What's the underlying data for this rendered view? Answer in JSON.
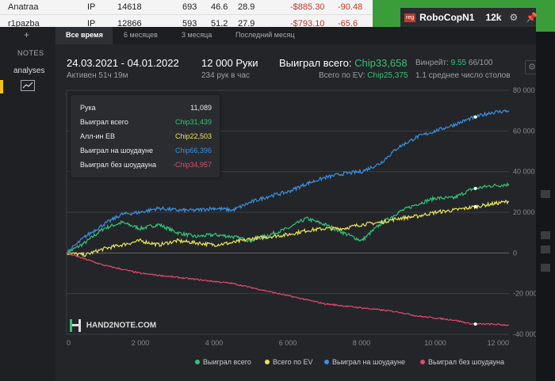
{
  "background_table": {
    "rows": [
      {
        "player": "Anatraa",
        "pos": "IP",
        "hands": "14618",
        "a": "693",
        "b": "46.6",
        "c": "28.9",
        "money": "-$885.30",
        "d": "-90.48"
      },
      {
        "player": "r1pazba",
        "pos": "IP",
        "hands": "12866",
        "a": "593",
        "b": "51.2",
        "c": "27.9",
        "money": "-$793.10",
        "d": "-65.6"
      }
    ]
  },
  "hud": {
    "badge": "reg",
    "name": "RoboCopN1",
    "hands": "12k"
  },
  "sidebar": {
    "plus": "+",
    "notes": "NOTES",
    "analyses": "analyses"
  },
  "tabs": [
    "Все время",
    "6 месяцев",
    "3 месяца",
    "Последний месяц"
  ],
  "summary": {
    "date_range": "24.03.2021 - 04.01.2022",
    "active": "Активен 51ч 19м",
    "hands": "12 000 Руки",
    "hands_per_hour": "234 рук в час",
    "won_total_label": "Выиграл всего:",
    "won_total_value": "Chip33,658",
    "ev_total_label": "Всего по EV:",
    "ev_total_value": "Chip25,375",
    "winrate_label": "Винрейт:",
    "winrate_value": "9.55",
    "winrate_suffix": "66/100",
    "avg_tables": "1.1 среднее число столов"
  },
  "tooltip": [
    {
      "label": "Рука",
      "value": "11,089",
      "color": "#e8e8e8"
    },
    {
      "label": "Выиграл всего",
      "value": "Chip31,439",
      "color": "#33c27a"
    },
    {
      "label": "Алл-ин EB",
      "value": "Chip22,503",
      "color": "#e9e35a"
    },
    {
      "label": "Выиграл на шоудауне",
      "value": "Chip66,396",
      "color": "#3b8fe0"
    },
    {
      "label": "Выиграл без шоудауна",
      "value": "-Chip34,957",
      "color": "#e04a6e"
    }
  ],
  "logo_text": "HAND2NOTE.COM",
  "chart_data": {
    "type": "line",
    "xlim": [
      0,
      12000
    ],
    "ylim": [
      -40000,
      80000
    ],
    "x_ticks": [
      0,
      2000,
      4000,
      6000,
      8000,
      10000,
      12000
    ],
    "x_tick_labels": [
      "0",
      "2 000",
      "4 000",
      "6 000",
      "8 000",
      "10 000",
      "12 000"
    ],
    "y_ticks": [
      -40000,
      -20000,
      0,
      20000,
      40000,
      60000,
      80000
    ],
    "y_tick_labels": [
      "-40 000",
      "-20 000",
      "0",
      "20 000",
      "40 000",
      "60 000",
      "80 000"
    ],
    "grid": true,
    "legend_position": "bottom",
    "series": [
      {
        "name": "Выиграл всего",
        "color": "#33c27a",
        "x": [
          0,
          500,
          1000,
          1500,
          2000,
          2500,
          3000,
          3500,
          4000,
          4500,
          5000,
          5500,
          6000,
          6500,
          7000,
          7500,
          8000,
          8500,
          9000,
          9500,
          10000,
          10500,
          11000,
          11500,
          12000
        ],
        "y": [
          0,
          5000,
          12000,
          15000,
          12000,
          14000,
          10000,
          8000,
          9000,
          8000,
          6000,
          9000,
          12000,
          17000,
          14000,
          10000,
          6000,
          14000,
          20000,
          24000,
          27000,
          27000,
          31439,
          33000,
          33658
        ]
      },
      {
        "name": "Всего по EV",
        "color": "#e9e35a",
        "x": [
          0,
          500,
          1000,
          1500,
          2000,
          2500,
          3000,
          3500,
          4000,
          4500,
          5000,
          5500,
          6000,
          6500,
          7000,
          7500,
          8000,
          8500,
          9000,
          9500,
          10000,
          10500,
          11000,
          11500,
          12000
        ],
        "y": [
          0,
          -1000,
          2000,
          4000,
          6000,
          4000,
          6000,
          5000,
          4000,
          5000,
          7000,
          8000,
          9000,
          11000,
          12000,
          12000,
          14000,
          15000,
          17000,
          18000,
          20000,
          21000,
          22503,
          24000,
          25375
        ]
      },
      {
        "name": "Выиграл на шоудауне",
        "color": "#3b8fe0",
        "x": [
          0,
          500,
          1000,
          1500,
          2000,
          2500,
          3000,
          3500,
          4000,
          4500,
          5000,
          5500,
          6000,
          6500,
          7000,
          7500,
          8000,
          8500,
          9000,
          9500,
          10000,
          10500,
          11000,
          11500,
          12000
        ],
        "y": [
          0,
          8000,
          14000,
          19000,
          20000,
          22000,
          21000,
          21000,
          22000,
          21000,
          25000,
          28000,
          30000,
          34000,
          37000,
          39000,
          40000,
          44000,
          52000,
          57000,
          60000,
          63000,
          66396,
          69000,
          70000
        ]
      },
      {
        "name": "Выиграл без шоудауна",
        "color": "#e04a6e",
        "x": [
          0,
          500,
          1000,
          1500,
          2000,
          2500,
          3000,
          3500,
          4000,
          4500,
          5000,
          5500,
          6000,
          6500,
          7000,
          7500,
          8000,
          8500,
          9000,
          9500,
          10000,
          10500,
          11000,
          11500,
          12000
        ],
        "y": [
          0,
          -3000,
          -6000,
          -8000,
          -10000,
          -11000,
          -12000,
          -13000,
          -14000,
          -15000,
          -17000,
          -19000,
          -21000,
          -23000,
          -25000,
          -26000,
          -27000,
          -28000,
          -29000,
          -31000,
          -32000,
          -33000,
          -34957,
          -35000,
          -35500
        ]
      }
    ],
    "highlight_x": 11089
  }
}
